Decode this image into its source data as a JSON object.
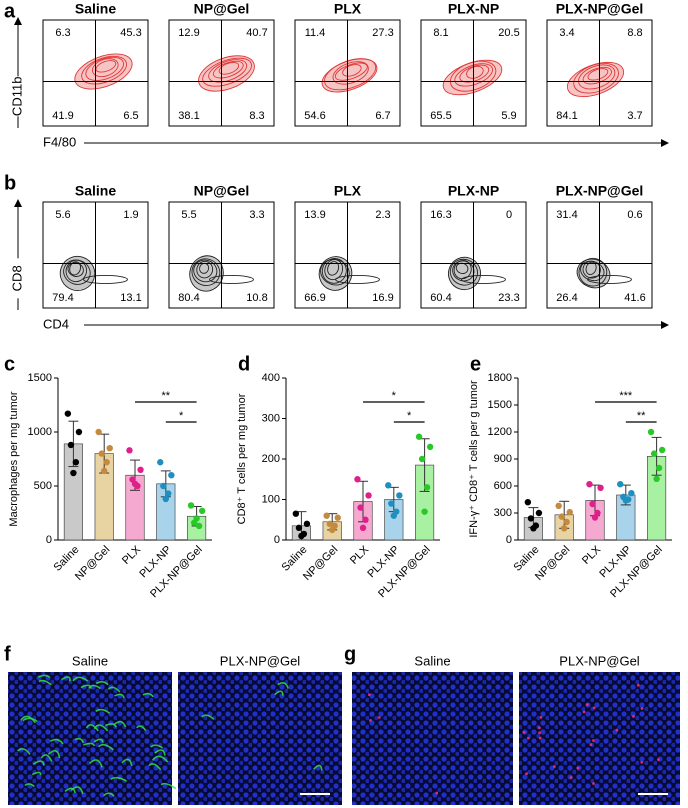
{
  "panel_labels": [
    "a",
    "b",
    "c",
    "d",
    "e",
    "f",
    "g"
  ],
  "flow": [
    {
      "groups": [
        "Saline",
        "NP@Gel",
        "PLX",
        "PLX-NP",
        "PLX-NP@Gel"
      ],
      "quadrants": [
        [
          6.3,
          45.3,
          41.9,
          6.5
        ],
        [
          12.9,
          40.7,
          38.1,
          8.3
        ],
        [
          11.4,
          27.3,
          54.6,
          6.7
        ],
        [
          8.1,
          20.5,
          65.5,
          5.9
        ],
        [
          3.4,
          8.8,
          84.1,
          3.7
        ]
      ],
      "y_label": "CD11b",
      "x_label": "F4/80",
      "contour_color": "#e03838",
      "contour_fill": "#f7c4c4"
    },
    {
      "groups": [
        "Saline",
        "NP@Gel",
        "PLX",
        "PLX-NP",
        "PLX-NP@Gel"
      ],
      "quadrants": [
        [
          5.6,
          1.9,
          79.4,
          13.1
        ],
        [
          5.5,
          3.3,
          80.4,
          10.8
        ],
        [
          13.9,
          2.3,
          66.9,
          16.9
        ],
        [
          16.3,
          0,
          60.4,
          23.3
        ],
        [
          31.4,
          0.6,
          26.4,
          41.6
        ]
      ],
      "y_label": "CD8",
      "x_label": "CD4",
      "contour_color": "#222222",
      "contour_fill": "#c8c8c8"
    }
  ],
  "chart_data": [
    {
      "type": "bar",
      "y_label": "Macrophages per mg tumor",
      "categories": [
        "Saline",
        "NP@Gel",
        "PLX",
        "PLX-NP",
        "PLX-NP@Gel"
      ],
      "colors": [
        "#c9c9c9",
        "#e8d3a2",
        "#f6a9d0",
        "#a9d3eb",
        "#a8f0a2"
      ],
      "point_colors": [
        "#000000",
        "#c48a3e",
        "#e0208a",
        "#1f8fc0",
        "#28c828"
      ],
      "values": [
        890,
        800,
        600,
        520,
        220
      ],
      "errors": [
        210,
        180,
        140,
        120,
        90
      ],
      "points": [
        [
          1170,
          1000,
          880,
          720,
          620
        ],
        [
          1000,
          850,
          800,
          720,
          640
        ],
        [
          830,
          650,
          560,
          500,
          520
        ],
        [
          720,
          600,
          500,
          430,
          380
        ],
        [
          320,
          270,
          160,
          130,
          200
        ]
      ],
      "ylim": [
        0,
        1500
      ],
      "yticks": [
        0,
        500,
        1000,
        1500
      ],
      "significance": [
        {
          "label": "**",
          "between": [
            "PLX",
            "PLX-NP@Gel"
          ]
        },
        {
          "label": "*",
          "between": [
            "PLX-NP",
            "PLX-NP@Gel"
          ]
        }
      ]
    },
    {
      "type": "bar",
      "y_label": "CD8⁺ T cells per mg tumor",
      "categories": [
        "Saline",
        "NP@Gel",
        "PLX",
        "PLX-NP",
        "PLX-NP@Gel"
      ],
      "colors": [
        "#c9c9c9",
        "#e8d3a2",
        "#f6a9d0",
        "#a9d3eb",
        "#a8f0a2"
      ],
      "point_colors": [
        "#000000",
        "#c48a3e",
        "#e0208a",
        "#1f8fc0",
        "#28c828"
      ],
      "values": [
        35,
        45,
        95,
        100,
        185
      ],
      "errors": [
        35,
        20,
        50,
        30,
        65
      ],
      "points": [
        [
          65,
          40,
          30,
          15,
          10
        ],
        [
          60,
          55,
          40,
          35,
          25
        ],
        [
          150,
          110,
          80,
          50,
          30
        ],
        [
          135,
          110,
          90,
          70,
          60
        ],
        [
          255,
          230,
          200,
          130,
          70
        ]
      ],
      "ylim": [
        0,
        400
      ],
      "yticks": [
        0,
        100,
        200,
        300,
        400
      ],
      "significance": [
        {
          "label": "*",
          "between": [
            "PLX",
            "PLX-NP@Gel"
          ]
        },
        {
          "label": "*",
          "between": [
            "PLX-NP",
            "PLX-NP@Gel"
          ]
        }
      ]
    },
    {
      "type": "bar",
      "y_label": "IFN-γ⁺ CD8⁺ T cells per g tumor",
      "categories": [
        "Saline",
        "NP@Gel",
        "PLX",
        "PLX-NP",
        "PLX-NP@Gel"
      ],
      "colors": [
        "#c9c9c9",
        "#e8d3a2",
        "#f6a9d0",
        "#a9d3eb",
        "#a8f0a2"
      ],
      "point_colors": [
        "#000000",
        "#c48a3e",
        "#e0208a",
        "#1f8fc0",
        "#28c828"
      ],
      "values": [
        250,
        280,
        440,
        500,
        930
      ],
      "errors": [
        110,
        150,
        170,
        110,
        210
      ],
      "points": [
        [
          420,
          300,
          240,
          160,
          130
        ],
        [
          380,
          310,
          260,
          200,
          130
        ],
        [
          620,
          580,
          400,
          300,
          250
        ],
        [
          620,
          520,
          480,
          450,
          440
        ],
        [
          1200,
          1000,
          960,
          800,
          680
        ]
      ],
      "ylim": [
        0,
        1800
      ],
      "yticks": [
        0,
        300,
        600,
        900,
        1200,
        1500,
        1800
      ],
      "significance": [
        {
          "label": "***",
          "between": [
            "PLX",
            "PLX-NP@Gel"
          ]
        },
        {
          "label": "**",
          "between": [
            "PLX-NP",
            "PLX-NP@Gel"
          ]
        }
      ]
    }
  ],
  "images": [
    {
      "titles": [
        "Saline",
        "PLX-NP@Gel"
      ],
      "stain": "#30e040"
    },
    {
      "titles": [
        "Saline",
        "PLX-NP@Gel"
      ],
      "stain": "#ff3070"
    }
  ]
}
